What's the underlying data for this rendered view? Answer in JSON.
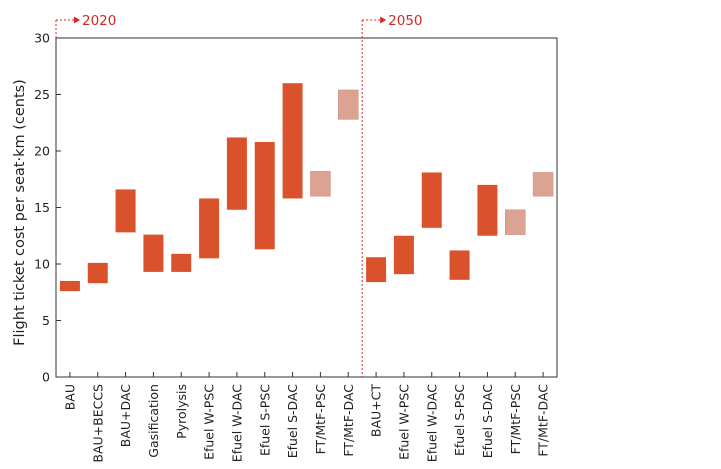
{
  "chart_data": {
    "type": "bar",
    "ylabel": "Flight ticket cost per seat·km (cents)",
    "ylim": [
      0,
      30
    ],
    "yticks": [
      0,
      5,
      10,
      15,
      20,
      25,
      30
    ],
    "grid": false,
    "colors": {
      "solid": "#d9522b",
      "light": "#dca393",
      "divider": "#d62728"
    },
    "periods": [
      {
        "label": "2020",
        "start_index": 0
      },
      {
        "label": "2050",
        "start_index": 11
      }
    ],
    "categories": [
      "BAU",
      "BAU+BECCS",
      "BAU+DAC",
      "Gasification",
      "Pyrolysis",
      "Efuel W-PSC",
      "Efuel W-DAC",
      "Efuel S-PSC",
      "Efuel S-DAC",
      "FT/MtF-PSC",
      "FT/MtF-DAC",
      "BAU+CT",
      "Efuel W-PSC",
      "Efuel W-DAC",
      "Efuel S-PSC",
      "Efuel S-DAC",
      "FT/MtF-PSC",
      "FT/MtF-DAC"
    ],
    "ranges": [
      {
        "low": 7.6,
        "high": 8.5,
        "style": "solid"
      },
      {
        "low": 8.3,
        "high": 10.1,
        "style": "solid"
      },
      {
        "low": 12.8,
        "high": 16.6,
        "style": "solid"
      },
      {
        "low": 9.3,
        "high": 12.6,
        "style": "solid"
      },
      {
        "low": 9.3,
        "high": 10.9,
        "style": "solid"
      },
      {
        "low": 10.5,
        "high": 15.8,
        "style": "solid"
      },
      {
        "low": 14.8,
        "high": 21.2,
        "style": "solid"
      },
      {
        "low": 11.3,
        "high": 20.8,
        "style": "solid"
      },
      {
        "low": 15.8,
        "high": 26.0,
        "style": "solid"
      },
      {
        "low": 16.0,
        "high": 18.2,
        "style": "light"
      },
      {
        "low": 22.8,
        "high": 25.4,
        "style": "light"
      },
      {
        "low": 8.4,
        "high": 10.6,
        "style": "solid"
      },
      {
        "low": 9.1,
        "high": 12.5,
        "style": "solid"
      },
      {
        "low": 13.2,
        "high": 18.1,
        "style": "solid"
      },
      {
        "low": 8.6,
        "high": 11.2,
        "style": "solid"
      },
      {
        "low": 12.5,
        "high": 17.0,
        "style": "solid"
      },
      {
        "low": 12.6,
        "high": 14.8,
        "style": "light"
      },
      {
        "low": 16.0,
        "high": 18.1,
        "style": "light"
      }
    ]
  }
}
